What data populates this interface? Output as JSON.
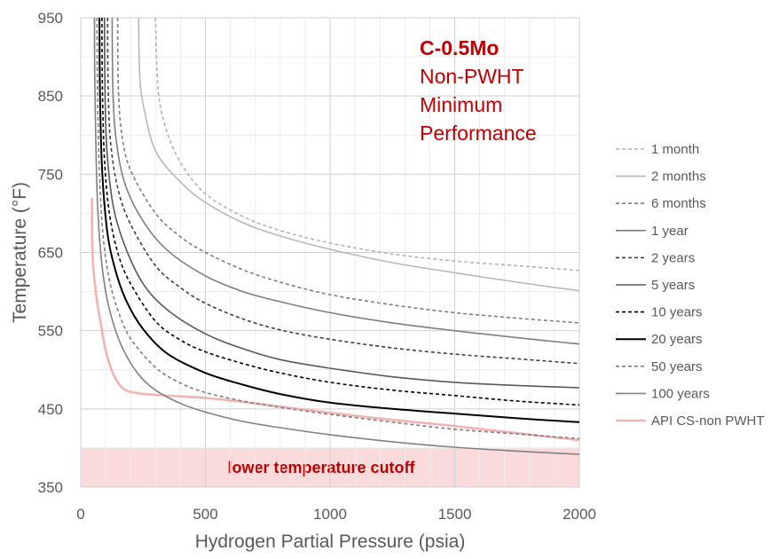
{
  "chart_data": {
    "type": "line",
    "title_lines": [
      "C-0.5Mo",
      "Non-PWHT",
      "Minimum",
      "Performance"
    ],
    "xlabel": "Hydrogen Partial Pressure (psia)",
    "ylabel": "Temperature (°F)",
    "xlim": [
      0,
      2000
    ],
    "ylim": [
      350,
      950
    ],
    "xticks": [
      0,
      500,
      1000,
      1500,
      2000
    ],
    "xtick_labels": [
      "0",
      "500",
      "1000",
      "1500",
      "2000"
    ],
    "yticks": [
      350,
      450,
      550,
      650,
      750,
      850,
      950
    ],
    "ytick_labels": [
      "350",
      "450",
      "550",
      "650",
      "750",
      "850",
      "950"
    ],
    "grid": true,
    "legend_position": "right",
    "cutoff_band": {
      "y_range": [
        350,
        400
      ],
      "label": "lower temperature cutoff",
      "color": "#fadada"
    },
    "series": [
      {
        "name": "1 month",
        "color": "#b4b4b4",
        "dash": "dashed",
        "x": [
          300,
          310,
          340,
          400,
          500,
          650,
          800,
          1000,
          1250,
          1500,
          1750,
          2000
        ],
        "y": [
          950,
          860,
          810,
          765,
          725,
          696,
          678,
          662,
          648,
          639,
          633,
          627
        ]
      },
      {
        "name": "2 months",
        "color": "#b8b8b8",
        "dash": "solid",
        "x": [
          232,
          236,
          250,
          300,
          400,
          500,
          650,
          800,
          1000,
          1250,
          1500,
          1750,
          2000
        ],
        "y": [
          950,
          880,
          840,
          780,
          740,
          714,
          688,
          671,
          654,
          637,
          624,
          612,
          601
        ]
      },
      {
        "name": "6 months",
        "color": "#7f7f7f",
        "dash": "dashed",
        "x": [
          148,
          151,
          165,
          200,
          300,
          400,
          500,
          650,
          800,
          1000,
          1250,
          1500,
          1750,
          2000
        ],
        "y": [
          950,
          860,
          800,
          755,
          700,
          670,
          650,
          628,
          612,
          596,
          583,
          573,
          566,
          560
        ]
      },
      {
        "name": "1 year",
        "color": "#7f7f7f",
        "dash": "solid",
        "x": [
          126,
          129,
          140,
          175,
          250,
          350,
          500,
          650,
          800,
          1000,
          1250,
          1500,
          1750,
          2000
        ],
        "y": [
          950,
          860,
          800,
          740,
          690,
          652,
          620,
          600,
          587,
          573,
          560,
          550,
          541,
          533
        ]
      },
      {
        "name": "2 years",
        "color": "#404040",
        "dash": "dashed",
        "x": [
          108,
          110,
          120,
          150,
          200,
          300,
          400,
          500,
          650,
          800,
          1000,
          1250,
          1500,
          1750,
          2000
        ],
        "y": [
          950,
          860,
          790,
          730,
          686,
          633,
          605,
          585,
          565,
          551,
          539,
          528,
          520,
          514,
          508
        ]
      },
      {
        "name": "5 years",
        "color": "#595959",
        "dash": "solid",
        "x": [
          95,
          97,
          105,
          130,
          175,
          250,
          350,
          500,
          650,
          800,
          1000,
          1250,
          1500,
          1750,
          2000
        ],
        "y": [
          950,
          860,
          780,
          710,
          660,
          610,
          576,
          546,
          527,
          513,
          502,
          491,
          484,
          480,
          477
        ]
      },
      {
        "name": "10 years",
        "color": "#000000",
        "dash": "dashed",
        "x": [
          85,
          87,
          95,
          115,
          150,
          200,
          300,
          400,
          500,
          650,
          800,
          1000,
          1250,
          1500,
          1750,
          2000
        ],
        "y": [
          950,
          860,
          770,
          700,
          648,
          610,
          562,
          538,
          523,
          508,
          496,
          484,
          474,
          467,
          460,
          455
        ]
      },
      {
        "name": "20 years",
        "color": "#000000",
        "dash": "solid",
        "x": [
          75,
          77,
          85,
          105,
          135,
          180,
          250,
          350,
          500,
          650,
          800,
          1000,
          1250,
          1500,
          1750,
          2000
        ],
        "y": [
          950,
          860,
          760,
          680,
          632,
          590,
          552,
          520,
          496,
          481,
          469,
          458,
          450,
          444,
          438,
          433
        ]
      },
      {
        "name": "50 years",
        "color": "#7f7f7f",
        "dash": "dashed",
        "x": [
          65,
          67,
          75,
          90,
          115,
          150,
          200,
          300,
          400,
          500,
          650,
          800,
          1000,
          1250,
          1500,
          1750,
          2000
        ],
        "y": [
          950,
          860,
          750,
          670,
          615,
          575,
          540,
          503,
          483,
          471,
          460,
          452,
          443,
          433,
          424,
          418,
          412
        ]
      },
      {
        "name": "100 years",
        "color": "#808080",
        "dash": "solid",
        "x": [
          55,
          57,
          65,
          80,
          100,
          130,
          170,
          230,
          300,
          400,
          500,
          650,
          800,
          1000,
          1250,
          1500,
          1750,
          2000
        ],
        "y": [
          950,
          860,
          730,
          650,
          600,
          560,
          526,
          495,
          474,
          457,
          446,
          434,
          426,
          417,
          408,
          401,
          396,
          392
        ]
      },
      {
        "name": "API CS-non PWHT",
        "color": "#f2b3b3",
        "dash": "solid",
        "x": [
          45,
          47,
          60,
          80,
          100,
          130,
          170,
          230,
          300,
          400,
          500,
          650,
          800,
          1000,
          1250,
          1500,
          1750,
          2000
        ],
        "y": [
          720,
          650,
          600,
          560,
          525,
          495,
          476,
          470,
          468,
          466,
          464,
          459,
          453,
          445,
          436,
          428,
          419,
          410
        ]
      }
    ]
  }
}
